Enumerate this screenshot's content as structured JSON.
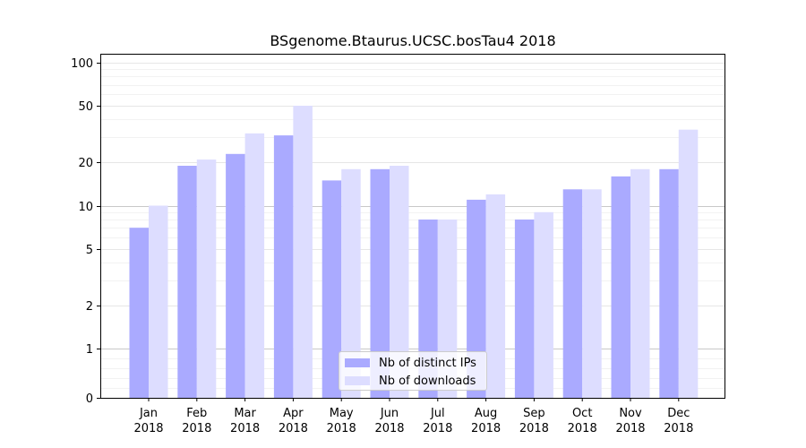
{
  "chart_data": {
    "type": "bar",
    "title": "BSgenome.Btaurus.UCSC.bosTau4 2018",
    "xlabel": "",
    "ylabel": "",
    "yscale": "symlog",
    "ylim": [
      0,
      130
    ],
    "yticks": [
      0,
      1,
      2,
      5,
      10,
      20,
      50,
      100
    ],
    "ytick_labels": [
      "0",
      "1",
      "2",
      "5",
      "10",
      "20",
      "50",
      "100"
    ],
    "categories": [
      [
        "Jan",
        "2018"
      ],
      [
        "Feb",
        "2018"
      ],
      [
        "Mar",
        "2018"
      ],
      [
        "Apr",
        "2018"
      ],
      [
        "May",
        "2018"
      ],
      [
        "Jun",
        "2018"
      ],
      [
        "Jul",
        "2018"
      ],
      [
        "Aug",
        "2018"
      ],
      [
        "Sep",
        "2018"
      ],
      [
        "Oct",
        "2018"
      ],
      [
        "Nov",
        "2018"
      ],
      [
        "Dec",
        "2018"
      ]
    ],
    "series": [
      {
        "name": "Nb of distinct IPs",
        "color": "#aaaaff",
        "values": [
          7,
          19,
          23,
          31,
          15,
          18,
          8,
          11,
          8,
          13,
          16,
          18
        ]
      },
      {
        "name": "Nb of downloads",
        "color": "#ddddff",
        "values": [
          10,
          21,
          32,
          50,
          18,
          19,
          8,
          12,
          9,
          13,
          18,
          34
        ]
      }
    ],
    "grid": true,
    "legend_position": "bottom-center"
  }
}
